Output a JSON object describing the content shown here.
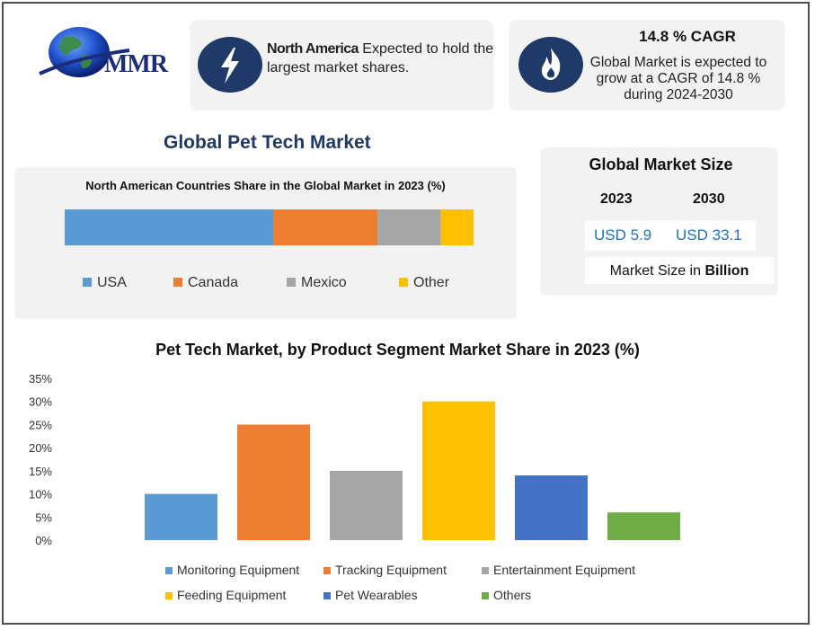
{
  "logo": {
    "text": "MMR"
  },
  "card1": {
    "bold": "North America",
    "text": " Expected to hold the largest market shares.",
    "icon": "lightning-bolt-icon"
  },
  "card2": {
    "title": "14.8 % CAGR",
    "text": "Global Market is expected to grow at a CAGR of 14.8 % during 2024-2030",
    "icon": "flame-icon"
  },
  "main_title": "Global Pet Tech Market",
  "market_size": {
    "title": "Global Market Size",
    "year1": "2023",
    "year2": "2030",
    "value1": "USD 5.9",
    "value2": "USD 33.1",
    "note_prefix": "Market Size in ",
    "note_bold": "Billion"
  },
  "colors": {
    "accent_navy": "#1f3864",
    "icon_bg": "#1f3a68",
    "value_blue": "#1e73be"
  },
  "chart_data": [
    {
      "type": "bar",
      "orientation": "horizontal-stacked",
      "title": "North American Countries Share in the Global Market in 2023  (%)",
      "series": [
        {
          "name": "USA",
          "value": 51,
          "color": "#5b9bd5"
        },
        {
          "name": "Canada",
          "value": 25.5,
          "color": "#ed7d31"
        },
        {
          "name": "Mexico",
          "value": 15.5,
          "color": "#a5a5a5"
        },
        {
          "name": "Other",
          "value": 8,
          "color": "#ffc000"
        }
      ],
      "legend_position": "bottom"
    },
    {
      "type": "bar",
      "title": "Pet Tech Market, by Product Segment Market Share in 2023 (%)",
      "categories": [
        "Monitoring Equipment",
        "Tracking Equipment",
        "Entertainment Equipment",
        "Feeding Equipment",
        "Pet Wearables",
        "Others"
      ],
      "values": [
        10,
        25,
        15,
        30,
        14,
        6
      ],
      "colors": [
        "#5b9bd5",
        "#ed7d31",
        "#a5a5a5",
        "#ffc000",
        "#4472c4",
        "#70ad47"
      ],
      "ylim": [
        0,
        35
      ],
      "yticks": [
        "0%",
        "5%",
        "10%",
        "15%",
        "20%",
        "25%",
        "30%",
        "35%"
      ],
      "grid": false,
      "legend_position": "bottom"
    }
  ]
}
